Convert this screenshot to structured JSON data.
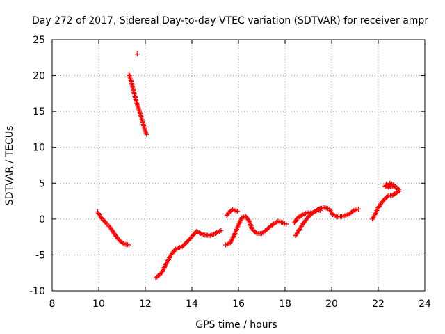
{
  "chart_data": {
    "type": "scatter",
    "title": "Day 272 of 2017, Sidereal Day-to-day VTEC variation (SDTVAR) for receiver ampr",
    "xlabel": "GPS time / hours",
    "ylabel": "SDTVAR / TECUs",
    "xlim": [
      8,
      24
    ],
    "ylim": [
      -10,
      25
    ],
    "xticks": [
      "8",
      "10",
      "12",
      "14",
      "16",
      "18",
      "20",
      "22",
      "24"
    ],
    "yticks": [
      "-10",
      "-5",
      "0",
      "5",
      "10",
      "15",
      "20",
      "25"
    ],
    "grid": true,
    "marker": "plus",
    "color": "#ff0000",
    "series": [
      {
        "name": "SDTVAR",
        "segments": [
          [
            [
              9.95,
              1.0
            ],
            [
              10.1,
              0.2
            ],
            [
              10.3,
              -0.5
            ],
            [
              10.5,
              -1.2
            ],
            [
              10.7,
              -2.2
            ],
            [
              10.9,
              -3.0
            ],
            [
              11.1,
              -3.5
            ],
            [
              11.3,
              -3.6
            ]
          ],
          [
            [
              11.3,
              20.2
            ],
            [
              11.45,
              18.5
            ],
            [
              11.6,
              16.5
            ],
            [
              11.8,
              14.5
            ],
            [
              11.95,
              12.8
            ],
            [
              12.05,
              11.8
            ]
          ],
          [
            [
              11.65,
              23.0
            ]
          ],
          [
            [
              12.45,
              -8.2
            ],
            [
              12.7,
              -7.5
            ],
            [
              12.9,
              -6.2
            ],
            [
              13.1,
              -5.0
            ],
            [
              13.3,
              -4.2
            ],
            [
              13.6,
              -3.8
            ],
            [
              13.9,
              -2.8
            ],
            [
              14.2,
              -1.7
            ],
            [
              14.5,
              -2.2
            ],
            [
              14.8,
              -2.3
            ],
            [
              15.0,
              -2.0
            ],
            [
              15.25,
              -1.6
            ]
          ],
          [
            [
              15.45,
              -3.6
            ],
            [
              15.65,
              -3.3
            ],
            [
              15.85,
              -2.0
            ],
            [
              16.0,
              -0.8
            ],
            [
              16.15,
              0.2
            ],
            [
              16.3,
              0.4
            ],
            [
              16.45,
              -0.2
            ],
            [
              16.6,
              -1.5
            ],
            [
              16.8,
              -2.0
            ],
            [
              17.0,
              -2.0
            ],
            [
              17.2,
              -1.5
            ],
            [
              17.45,
              -0.8
            ],
            [
              17.7,
              -0.3
            ],
            [
              17.9,
              -0.5
            ],
            [
              18.05,
              -0.7
            ]
          ],
          [
            [
              15.5,
              0.5
            ],
            [
              15.6,
              1.0
            ],
            [
              15.75,
              1.3
            ],
            [
              15.95,
              1.1
            ]
          ],
          [
            [
              18.45,
              -2.3
            ],
            [
              18.55,
              -1.8
            ],
            [
              18.7,
              -1.0
            ],
            [
              18.85,
              -0.3
            ],
            [
              19.0,
              0.3
            ],
            [
              19.2,
              0.9
            ],
            [
              19.4,
              1.3
            ],
            [
              19.5,
              1.2
            ]
          ],
          [
            [
              18.4,
              -0.5
            ],
            [
              18.55,
              0.2
            ],
            [
              18.75,
              0.6
            ],
            [
              18.95,
              0.9
            ],
            [
              19.15,
              0.8
            ],
            [
              19.35,
              1.2
            ],
            [
              19.5,
              1.5
            ],
            [
              19.7,
              1.6
            ],
            [
              19.9,
              1.4
            ],
            [
              20.05,
              0.6
            ],
            [
              20.25,
              0.3
            ],
            [
              20.5,
              0.4
            ],
            [
              20.75,
              0.7
            ],
            [
              20.95,
              1.2
            ],
            [
              21.15,
              1.4
            ]
          ],
          [
            [
              21.75,
              0.0
            ],
            [
              21.85,
              0.6
            ],
            [
              22.0,
              1.6
            ],
            [
              22.15,
              2.3
            ],
            [
              22.3,
              2.9
            ],
            [
              22.45,
              3.3
            ],
            [
              22.6,
              3.3
            ],
            [
              22.75,
              3.6
            ],
            [
              22.9,
              3.9
            ],
            [
              22.85,
              4.3
            ],
            [
              22.6,
              4.6
            ],
            [
              22.45,
              4.4
            ],
            [
              22.5,
              5.0
            ],
            [
              22.65,
              4.8
            ],
            [
              22.3,
              4.5
            ],
            [
              22.35,
              4.9
            ]
          ]
        ]
      }
    ]
  }
}
